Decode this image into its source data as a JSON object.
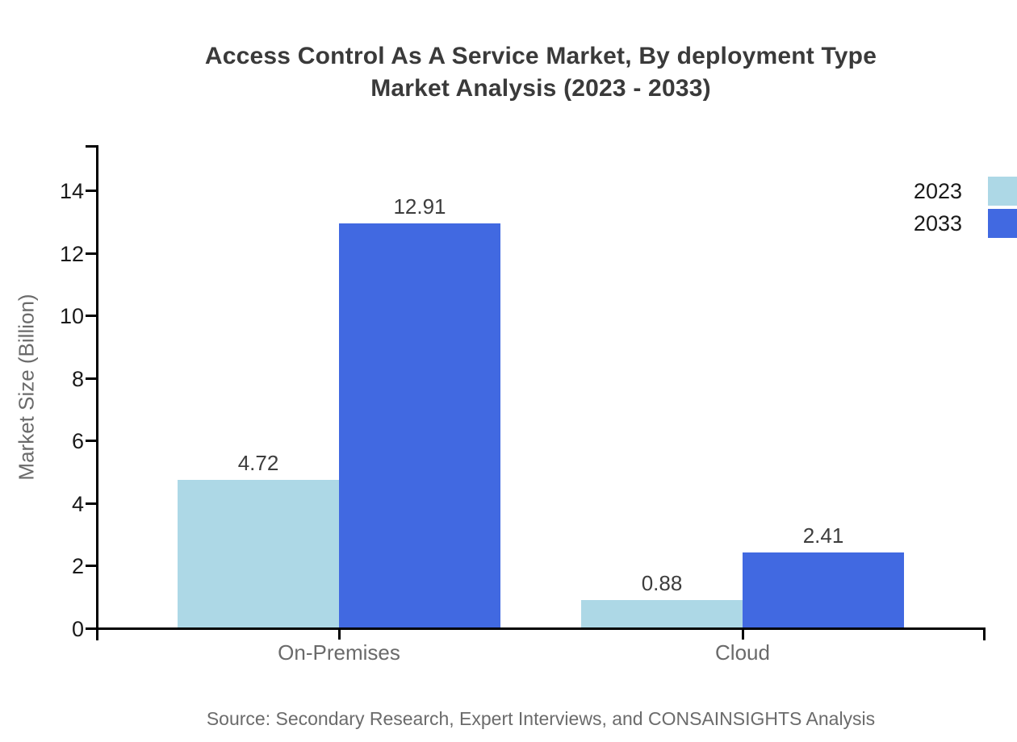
{
  "title": {
    "line1": "Access Control As A Service Market, By deployment Type",
    "line2": "Market Analysis (2023 - 2033)"
  },
  "source": "Source: Secondary Research, Expert Interviews, and CONSAINSIGHTS Analysis",
  "chart_data": {
    "type": "bar",
    "title": "Access Control As A Service Market, By deployment Type Market Analysis (2023 - 2033)",
    "categories": [
      "On-Premises",
      "Cloud"
    ],
    "series": [
      {
        "name": "2023",
        "color": "#ADD8E6",
        "values": [
          4.72,
          0.88
        ]
      },
      {
        "name": "2033",
        "color": "#4169E1",
        "values": [
          12.91,
          2.41
        ]
      }
    ],
    "xlabel": "",
    "ylabel": "Market Size (Billion)",
    "ylim": [
      0,
      15.5
    ],
    "yticks": [
      0,
      2,
      4,
      6,
      8,
      10,
      12,
      14
    ],
    "grid": false,
    "legend_position": "top-right",
    "value_labels": true,
    "value_label_decimals": 2,
    "axis_color": "#000000"
  }
}
